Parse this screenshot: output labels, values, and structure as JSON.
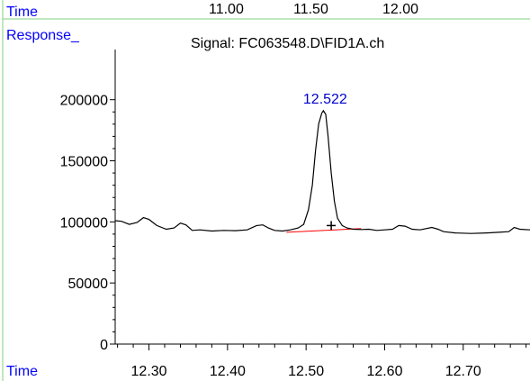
{
  "colors": {
    "frame": "#7fd07f",
    "axis_labels": "#0000ff",
    "trace": "#000000",
    "baseline": "#ff0000",
    "peak_label": "#0000cc"
  },
  "header": {
    "time_label": "Time",
    "time_ticks": [
      "11.00",
      "11.50",
      "12.00"
    ],
    "response_label": "Response_",
    "signal_title": "Signal: FC063548.D\\FID1A.ch"
  },
  "footer": {
    "time_label": "Time"
  },
  "chart_data": {
    "type": "line",
    "title": "Signal: FC063548.D\\FID1A.ch",
    "xlabel": "Time",
    "ylabel": "Response_",
    "xlim": [
      12.257,
      12.785
    ],
    "ylim": [
      0,
      230000
    ],
    "x_ticks": [
      "12.30",
      "12.40",
      "12.50",
      "12.60",
      "12.70"
    ],
    "y_ticks": [
      "0",
      "50000",
      "100000",
      "150000",
      "200000"
    ],
    "grid": false,
    "peak": {
      "label": "12.522",
      "x": 12.522,
      "apex": 191000,
      "marker": "+",
      "marker_x": 12.532,
      "marker_y": 97000
    },
    "baseline_segment": {
      "x": [
        12.475,
        12.57
      ],
      "y": [
        91500,
        94500
      ]
    },
    "series": [
      {
        "x": [
          12.257,
          12.265,
          12.275,
          12.285,
          12.293,
          12.3,
          12.31,
          12.322,
          12.332,
          12.34,
          12.347,
          12.355,
          12.365,
          12.38,
          12.395,
          12.41,
          12.425,
          12.437,
          12.445,
          12.452,
          12.46,
          12.47,
          12.48,
          12.49,
          12.497,
          12.503,
          12.508,
          12.512,
          12.516,
          12.52,
          12.522,
          12.525,
          12.528,
          12.532,
          12.536,
          12.54,
          12.546,
          12.552,
          12.56,
          12.57,
          12.58,
          12.59,
          12.6,
          12.61,
          12.618,
          12.626,
          12.635,
          12.645,
          12.66,
          12.668,
          12.675,
          12.69,
          12.71,
          12.73,
          12.745,
          12.758,
          12.765,
          12.772,
          12.785
        ],
        "y": [
          101000,
          100500,
          98000,
          99500,
          103500,
          102000,
          97000,
          94000,
          95000,
          99000,
          97500,
          93000,
          93500,
          92500,
          93000,
          92800,
          93500,
          97000,
          97500,
          95000,
          93000,
          92500,
          93500,
          95000,
          98000,
          110000,
          130000,
          158000,
          180000,
          189000,
          191000,
          188000,
          170000,
          140000,
          117000,
          103000,
          97000,
          95000,
          94000,
          93800,
          94000,
          93000,
          93500,
          94000,
          97000,
          96500,
          94000,
          93500,
          95500,
          94000,
          92000,
          91000,
          90500,
          91000,
          91500,
          92000,
          95500,
          94000,
          93500
        ]
      }
    ]
  }
}
